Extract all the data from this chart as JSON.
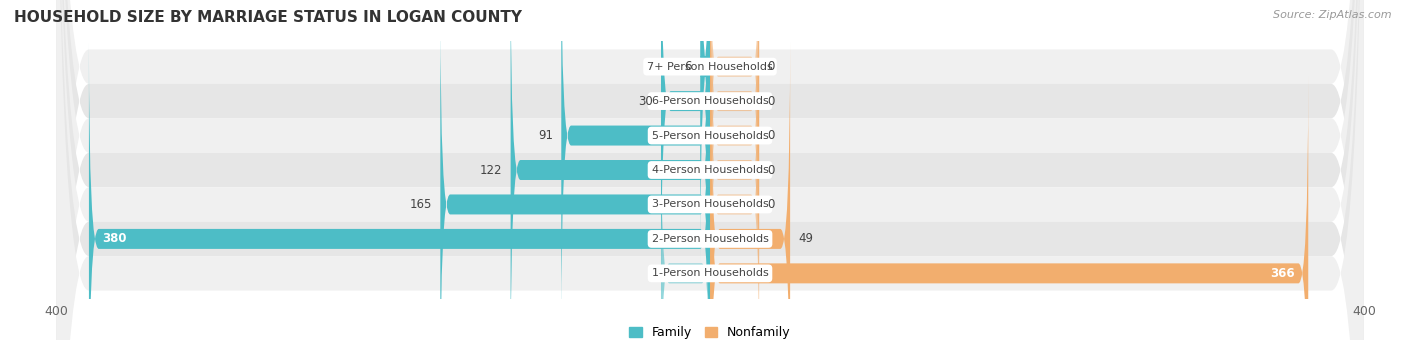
{
  "title": "HOUSEHOLD SIZE BY MARRIAGE STATUS IN LOGAN COUNTY",
  "source": "Source: ZipAtlas.com",
  "categories": [
    "7+ Person Households",
    "6-Person Households",
    "5-Person Households",
    "4-Person Households",
    "3-Person Households",
    "2-Person Households",
    "1-Person Households"
  ],
  "family_values": [
    6,
    30,
    91,
    122,
    165,
    380,
    0
  ],
  "nonfamily_values": [
    0,
    0,
    0,
    0,
    0,
    49,
    366
  ],
  "family_color": "#4DBDC6",
  "nonfamily_color": "#F2AE6E",
  "xlim": [
    -400,
    400
  ],
  "max_val": 400,
  "bar_height": 0.58,
  "title_fontsize": 11,
  "source_fontsize": 8,
  "tick_fontsize": 9,
  "bar_label_fontsize": 8.5,
  "cat_label_fontsize": 8,
  "background_color": "#ffffff",
  "row_bg_even": "#f0f0f0",
  "row_bg_odd": "#e6e6e6"
}
